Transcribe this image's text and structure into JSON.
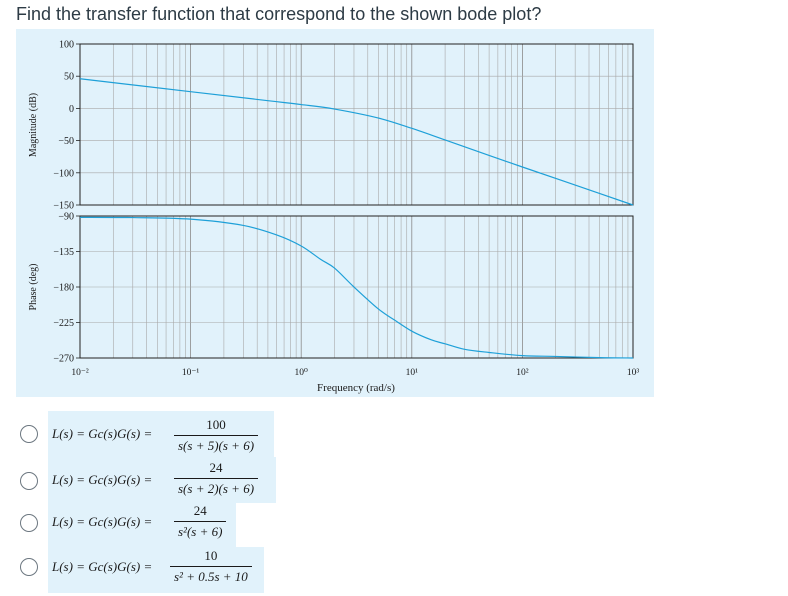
{
  "question": "Find the transfer function that correspond to the shown bode plot?",
  "chart_data": [
    {
      "type": "line",
      "ylabel": "Magnitude (dB)",
      "xscale": "log",
      "xlim": [
        0.01,
        1000
      ],
      "ylim": [
        -150,
        100
      ],
      "yticks": [
        "100",
        "50",
        "0",
        "−50",
        "−100",
        "−150"
      ],
      "yticks_values": [
        100,
        50,
        0,
        -50,
        -100,
        -150
      ],
      "grid": true,
      "line_color": "#1ea0d8",
      "series": [
        {
          "x": [
            0.01,
            0.1,
            0.5,
            1,
            2,
            5,
            10,
            20,
            50,
            100,
            300,
            1000
          ],
          "y": [
            46,
            26,
            12,
            6,
            -1,
            -15,
            -31,
            -49,
            -73,
            -91,
            -119,
            -150
          ]
        }
      ]
    },
    {
      "type": "line",
      "ylabel": "Phase (deg)",
      "xlabel": "Frequency (rad/s)",
      "xscale": "log",
      "xlim": [
        0.01,
        1000
      ],
      "ylim": [
        -270,
        -90
      ],
      "yticks": [
        "−90",
        "−135",
        "−180",
        "−225",
        "−270"
      ],
      "yticks_values": [
        -90,
        -135,
        -180,
        -225,
        -270
      ],
      "xticks": [
        "10⁻²",
        "10⁻¹",
        "10⁰",
        "10¹",
        "10²",
        "10³"
      ],
      "xticks_values": [
        0.01,
        0.1,
        1,
        10,
        100,
        1000
      ],
      "grid": true,
      "line_color": "#1ea0d8",
      "series": [
        {
          "x": [
            0.01,
            0.03,
            0.1,
            0.3,
            0.6,
            1,
            1.5,
            2,
            3,
            5,
            7,
            10,
            15,
            20,
            30,
            50,
            100,
            200,
            500,
            1000
          ],
          "y": [
            -91.7,
            -92,
            -94,
            -102,
            -114,
            -128,
            -145,
            -156,
            -180,
            -208,
            -222,
            -236,
            -247,
            -252,
            -259,
            -263,
            -267,
            -268,
            -269.5,
            -270
          ]
        }
      ]
    }
  ],
  "options": [
    {
      "lhs": "L(s) = Gc(s)G(s) =",
      "num": "100",
      "den": "s(s + 5)(s + 6)"
    },
    {
      "lhs": "L(s) = Gc(s)G(s) =",
      "num": "24",
      "den": "s(s + 2)(s + 6)"
    },
    {
      "lhs": "L(s) = Gc(s)G(s) =",
      "num": "24",
      "den": "s²(s + 6)"
    },
    {
      "lhs": "L(s) = Gc(s)G(s) =",
      "num": "10",
      "den": "s² + 0.5s + 10"
    }
  ]
}
